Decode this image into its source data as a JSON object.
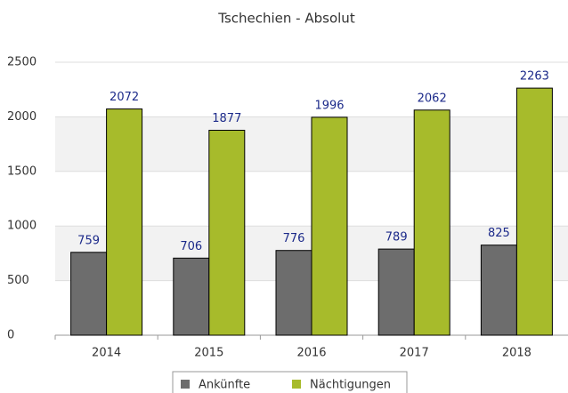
{
  "chart_data": {
    "type": "bar",
    "title": "Tschechien - Absolut",
    "categories": [
      "2014",
      "2015",
      "2016",
      "2017",
      "2018"
    ],
    "series": [
      {
        "name": "Ankünfte",
        "color": "#6d6d6d",
        "values": [
          759,
          706,
          776,
          789,
          825
        ]
      },
      {
        "name": "Nächtigungen",
        "color": "#a7bb2b",
        "values": [
          2072,
          1877,
          1996,
          2062,
          2263
        ]
      }
    ],
    "ylim": [
      0,
      2500
    ],
    "yticks": [
      0,
      500,
      1000,
      1500,
      2000,
      2500
    ],
    "grid": true,
    "legend": "bottom"
  }
}
